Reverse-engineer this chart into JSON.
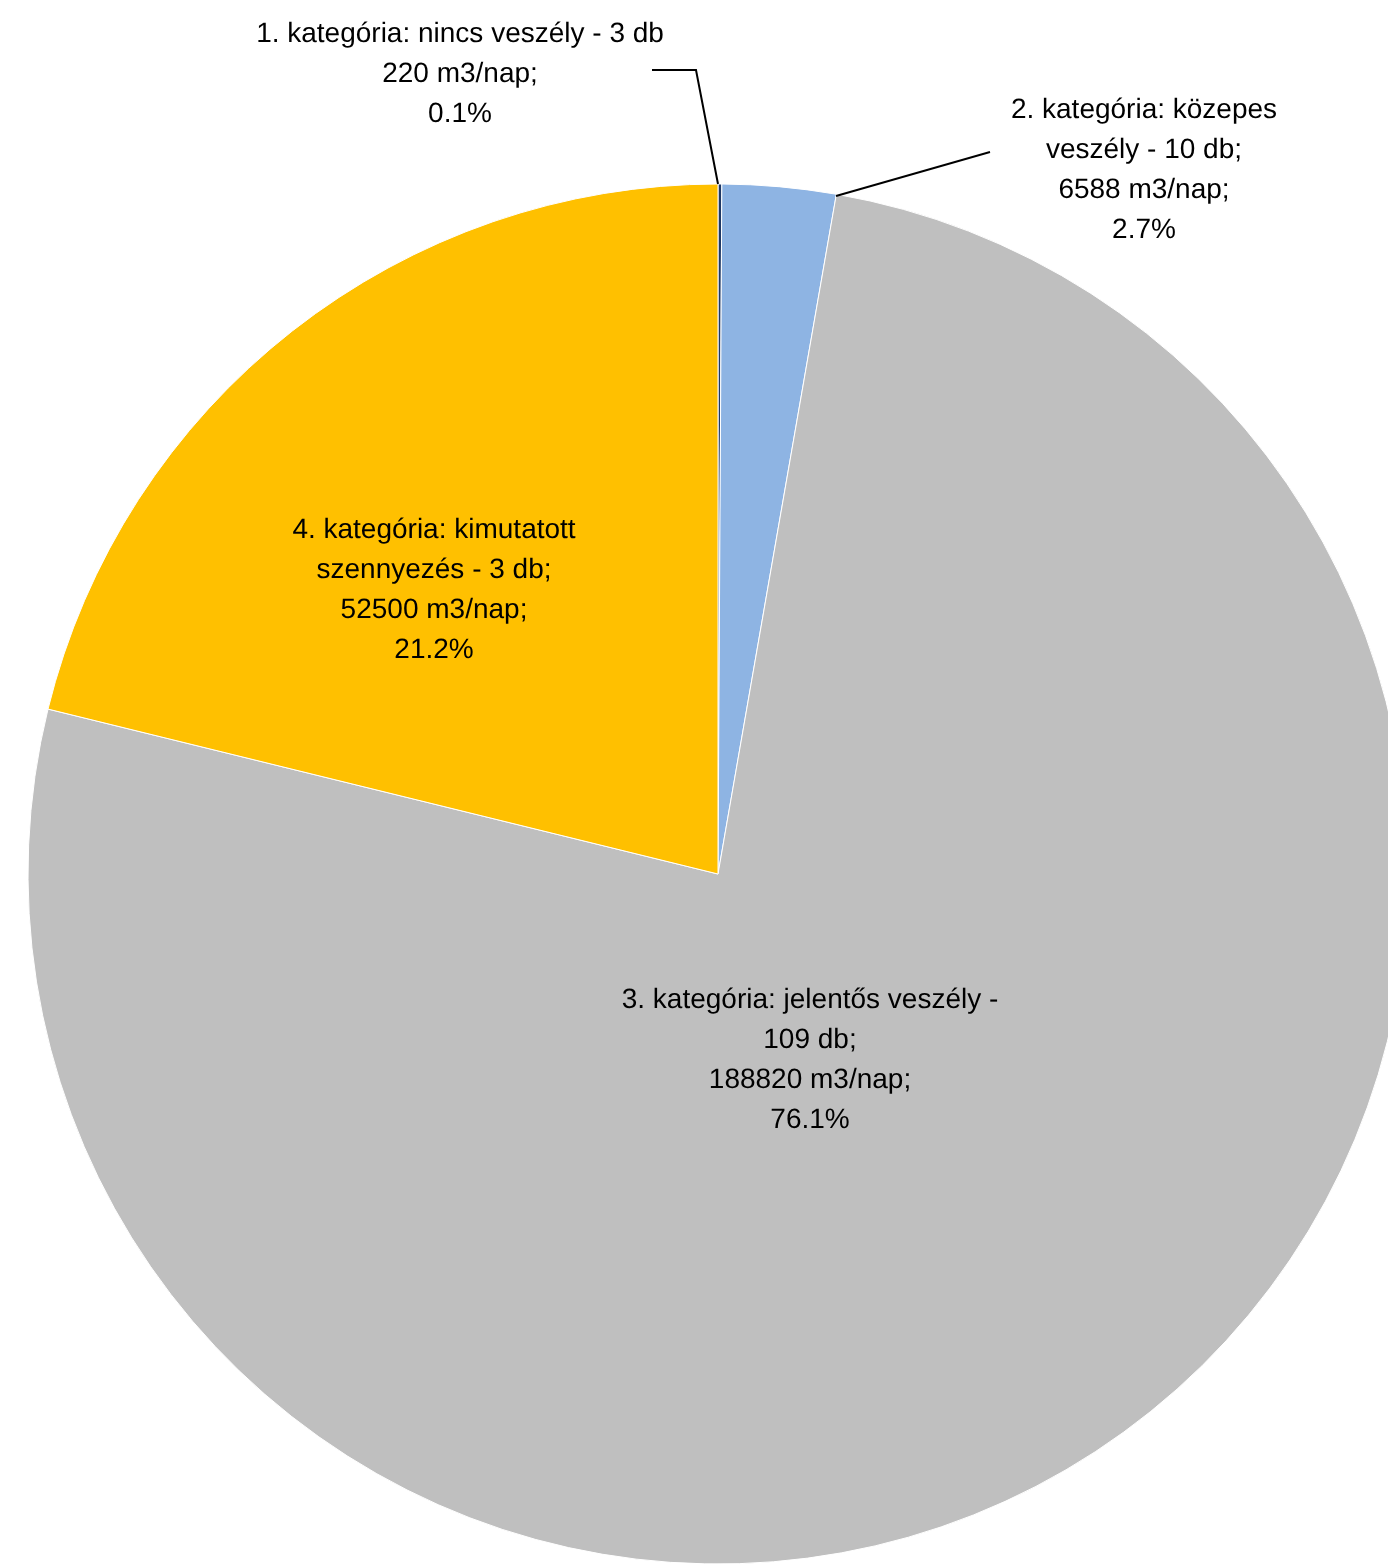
{
  "chart_data": {
    "type": "pie",
    "categories": [
      "1. kategória: nincs veszély - 3 db",
      "2. kategória: közepes veszély - 10 db",
      "3. kategória:  jelentős veszély - 109 db",
      "4. kategória: kimutatott szennyezés - 3 db"
    ],
    "values": [
      220,
      6588,
      188820,
      52500
    ],
    "value_labels": [
      "220 m3/nap;\n0.1%",
      ";\n6588 m3/nap;\n2.7%",
      ";\n188820 m3/nap;\n76.1%",
      ";\n52500 m3/nap;\n21.2%"
    ],
    "colors": [
      "#1f3864",
      "#8eb4e3",
      "#bfbfbf",
      "#ffc000"
    ]
  }
}
